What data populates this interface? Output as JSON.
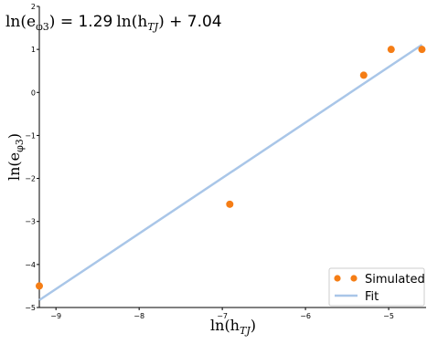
{
  "chart_data": {
    "type": "scatter",
    "annotation": {
      "prefix": "ln(e",
      "sub": "φ3",
      "mid": ") = ",
      "slope": "1.29",
      "ln_text": "ln(h",
      "ln_sub": "TJ",
      "close": ")",
      "suffix": " + 7.04"
    },
    "xlabel": {
      "main": "ln(h",
      "sub": "TJ",
      "close": ")"
    },
    "ylabel": {
      "main": "ln(e",
      "sub": "φ3",
      "close": ")"
    },
    "xlim": [
      -9.2,
      -4.55
    ],
    "ylim": [
      -5,
      2
    ],
    "x_ticks": [
      -9,
      -8,
      -7,
      -6,
      -5
    ],
    "x_tick_labels": [
      "−9",
      "−8",
      "−7",
      "−6",
      "−5"
    ],
    "y_ticks": [
      -5,
      -4,
      -3,
      -2,
      -1,
      0,
      1,
      2
    ],
    "y_tick_labels": [
      "−5",
      "−4",
      "−3",
      "−2",
      "−1",
      "0",
      "1",
      "2"
    ],
    "grid": false,
    "legend_position": "bottom-right",
    "series": [
      {
        "name": "Simulated",
        "kind": "scatter",
        "color": "#f57d15",
        "x": [
          -9.2,
          -6.91,
          -5.3,
          -4.97,
          -4.6
        ],
        "y": [
          -4.5,
          -2.6,
          0.4,
          1.0,
          1.0
        ]
      },
      {
        "name": "Fit",
        "kind": "line",
        "color": "#a9c6e8",
        "slope": 1.29,
        "intercept": 7.04,
        "x_range": [
          -9.2,
          -4.6
        ]
      }
    ]
  }
}
